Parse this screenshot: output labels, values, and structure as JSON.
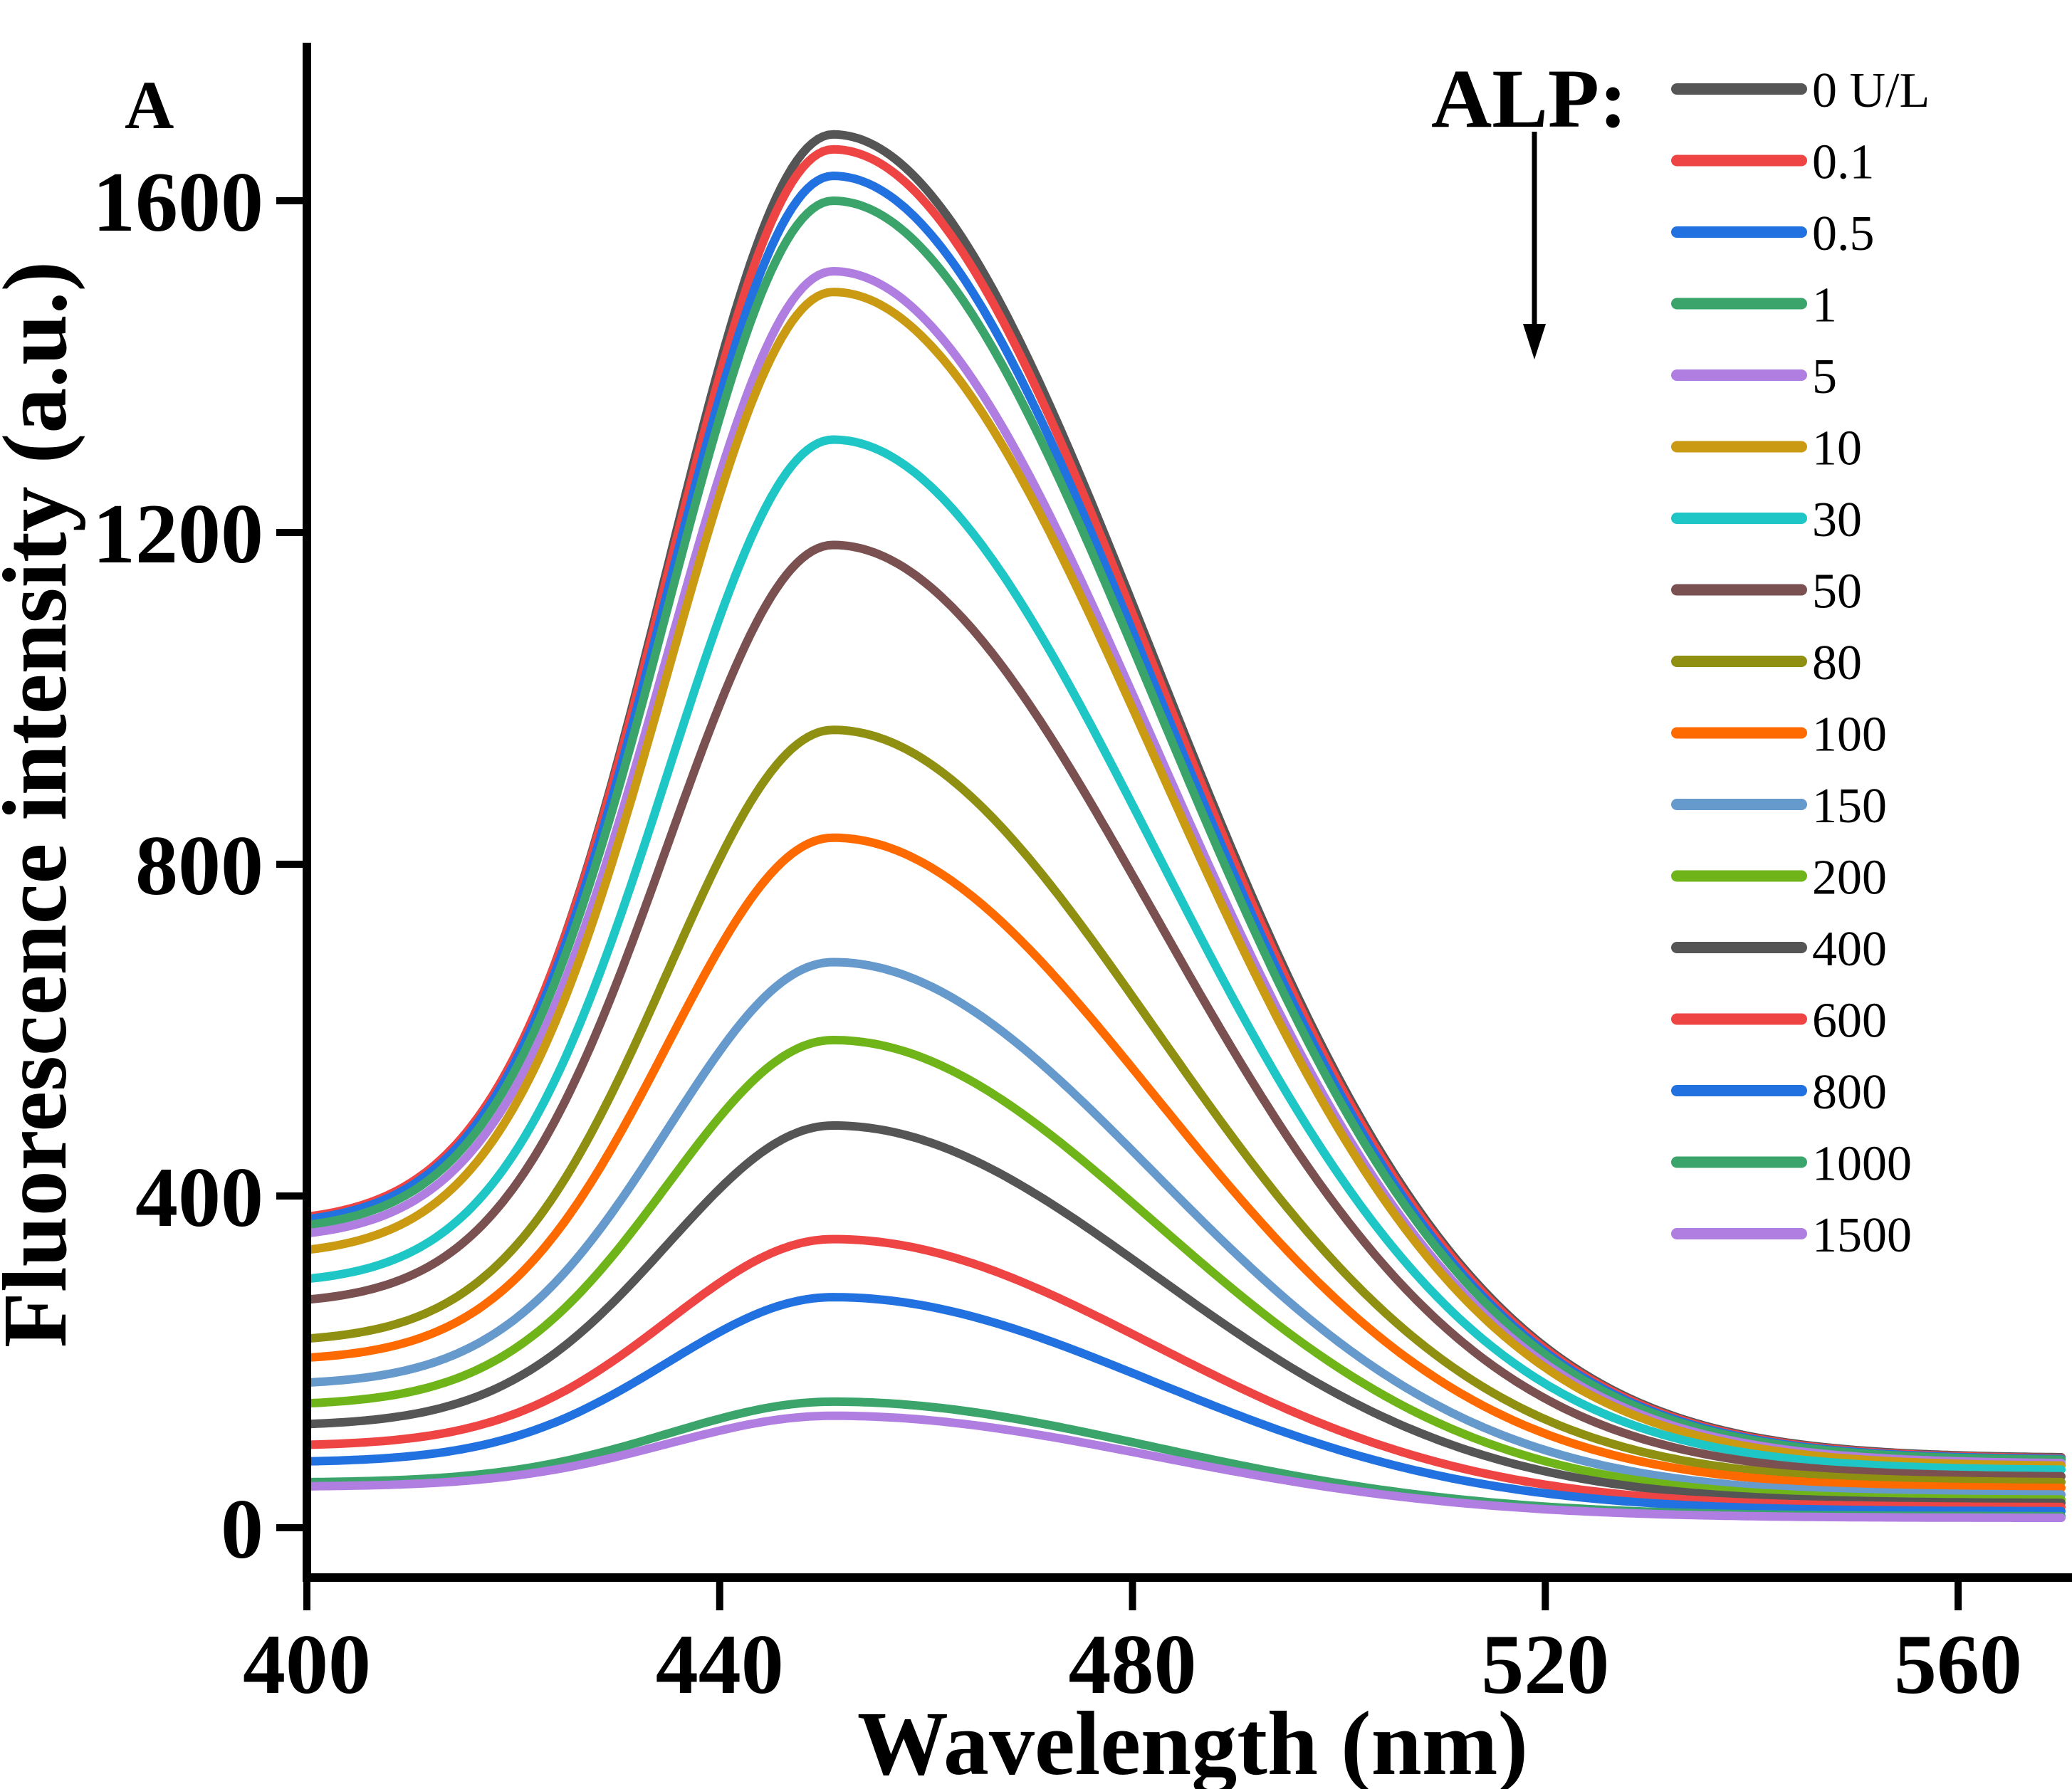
{
  "chart_data": {
    "type": "line",
    "panel_label": "A",
    "xlabel": "Wavelength (nm)",
    "ylabel": "Fluorescence intensity (a.u.)",
    "xlim": [
      400,
      570
    ],
    "ylim": [
      -50,
      1800
    ],
    "xticks": [
      400,
      440,
      480,
      520,
      560
    ],
    "yticks": [
      0,
      400,
      800,
      1200,
      1600
    ],
    "grid": false,
    "legend": {
      "title": "ALP:",
      "position": "top-right"
    },
    "curve_model": {
      "peak_wavelength": 451,
      "left_width": 16,
      "right_width": 31
    },
    "series": [
      {
        "name": "0 U/L",
        "color": "#555555",
        "start": 370,
        "peak": 1680,
        "end": 85
      },
      {
        "name": "0.1",
        "color": "#ef4444",
        "start": 375,
        "peak": 1662,
        "end": 84
      },
      {
        "name": "0.5",
        "color": "#2271e0",
        "start": 372,
        "peak": 1630,
        "end": 83
      },
      {
        "name": "1",
        "color": "#3aa46a",
        "start": 365,
        "peak": 1600,
        "end": 82
      },
      {
        "name": "5",
        "color": "#b07ee0",
        "start": 355,
        "peak": 1515,
        "end": 78
      },
      {
        "name": "10",
        "color": "#c99a12",
        "start": 335,
        "peak": 1490,
        "end": 75
      },
      {
        "name": "30",
        "color": "#1ec6c6",
        "start": 300,
        "peak": 1312,
        "end": 70
      },
      {
        "name": "50",
        "color": "#7a5050",
        "start": 275,
        "peak": 1185,
        "end": 62
      },
      {
        "name": "80",
        "color": "#8f8f12",
        "start": 228,
        "peak": 962,
        "end": 55
      },
      {
        "name": "100",
        "color": "#ff6a00",
        "start": 205,
        "peak": 832,
        "end": 48
      },
      {
        "name": "150",
        "color": "#6699cc",
        "start": 175,
        "peak": 682,
        "end": 40
      },
      {
        "name": "200",
        "color": "#6fb51a",
        "start": 150,
        "peak": 588,
        "end": 34
      },
      {
        "name": "400",
        "color": "#555555",
        "start": 125,
        "peak": 485,
        "end": 30
      },
      {
        "name": "600",
        "color": "#ef4444",
        "start": 100,
        "peak": 348,
        "end": 25
      },
      {
        "name": "800",
        "color": "#2271e0",
        "start": 80,
        "peak": 278,
        "end": 20
      },
      {
        "name": "1000",
        "color": "#3aa46a",
        "start": 55,
        "peak": 152,
        "end": 14
      },
      {
        "name": "1500",
        "color": "#b07ee0",
        "start": 50,
        "peak": 135,
        "end": 12
      }
    ]
  }
}
